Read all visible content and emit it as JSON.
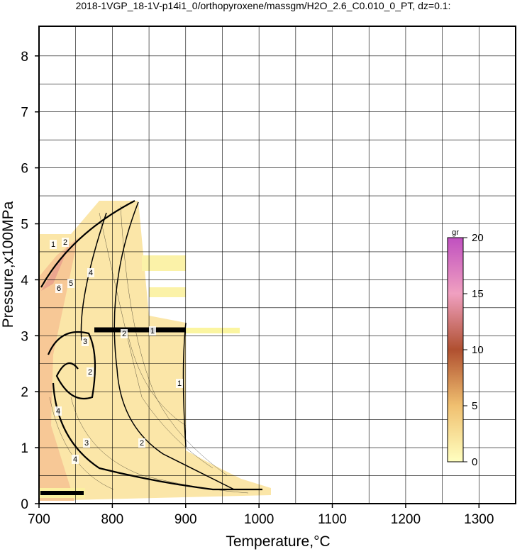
{
  "chart_data": {
    "type": "contour",
    "title": "2018-1VGP_18-1V-p14i1_0/orthopyroxene/massgm/H2O_2.6_C0.010_0_PT, dz=0.1:",
    "x_label": "Temperature,°C",
    "y_label": "Pressure,x100MPa",
    "xlim": [
      700,
      1350
    ],
    "ylim": [
      0,
      8.53
    ],
    "xticks": [
      700,
      800,
      900,
      1000,
      1100,
      1200,
      1300
    ],
    "yticks": [
      0,
      1,
      2,
      3,
      4,
      5,
      6,
      7,
      8
    ],
    "xgrid": [
      750,
      850,
      950,
      1050,
      1150,
      1250
    ],
    "ygrid": [
      0.5,
      1.5,
      2.5,
      3.5,
      4.5,
      5.5,
      6.5,
      7.5
    ],
    "grid": true,
    "contour_labels": [
      "1",
      "2",
      "1",
      "2",
      "3",
      "4",
      "4",
      "5",
      "6",
      "3",
      "2",
      "4",
      "1",
      "2"
    ],
    "colorbar": {
      "label": "gr",
      "lim": [
        0,
        20
      ],
      "ticks": [
        0,
        5,
        10,
        15,
        20
      ],
      "colors": [
        "#ffffc0",
        "#f0c070",
        "#b05030",
        "#f0a0c0",
        "#c050c0"
      ]
    }
  }
}
